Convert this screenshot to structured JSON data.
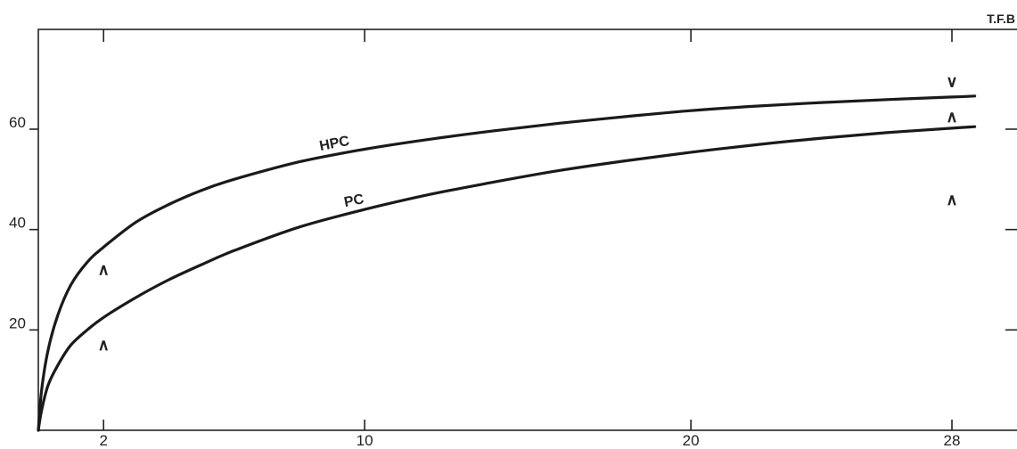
{
  "chart_data": {
    "type": "line",
    "corner_label": "T.F.B",
    "x_ticks": [
      2,
      10,
      20,
      28
    ],
    "y_ticks": [
      20,
      40,
      60
    ],
    "xlim": [
      0,
      29
    ],
    "ylim": [
      0,
      76
    ],
    "series": [
      {
        "name": "HPC",
        "x": [
          0,
          0.1,
          0.3,
          0.6,
          1,
          1.5,
          2,
          3,
          4,
          5,
          6,
          8,
          10,
          12,
          14,
          16,
          18,
          20,
          22,
          24,
          26,
          28,
          28.7
        ],
        "y": [
          0,
          8,
          16,
          23,
          29,
          33.5,
          36.5,
          41.5,
          45,
          47.8,
          50,
          53.5,
          56,
          58,
          59.7,
          61.2,
          62.5,
          63.7,
          64.6,
          65.3,
          65.9,
          66.4,
          66.6
        ]
      },
      {
        "name": "PC",
        "x": [
          0,
          0.1,
          0.3,
          0.6,
          1,
          1.5,
          2,
          3,
          4,
          5,
          6,
          8,
          10,
          12,
          14,
          16,
          18,
          20,
          22,
          24,
          26,
          28,
          28.7
        ],
        "y": [
          0,
          4,
          9,
          13,
          17,
          20,
          22.5,
          26.5,
          30,
          33,
          35.8,
          40.5,
          44,
          47,
          49.5,
          51.8,
          53.7,
          55.4,
          56.9,
          58.2,
          59.3,
          60.2,
          60.5
        ]
      }
    ],
    "markers": [
      {
        "x": 2,
        "y": 32,
        "symbol": "∧"
      },
      {
        "x": 2,
        "y": 17,
        "symbol": "∧"
      },
      {
        "x": 28,
        "y": 69.5,
        "symbol": "∨"
      },
      {
        "x": 28,
        "y": 62.5,
        "symbol": "∧"
      },
      {
        "x": 28,
        "y": 46,
        "symbol": "∧"
      }
    ]
  }
}
